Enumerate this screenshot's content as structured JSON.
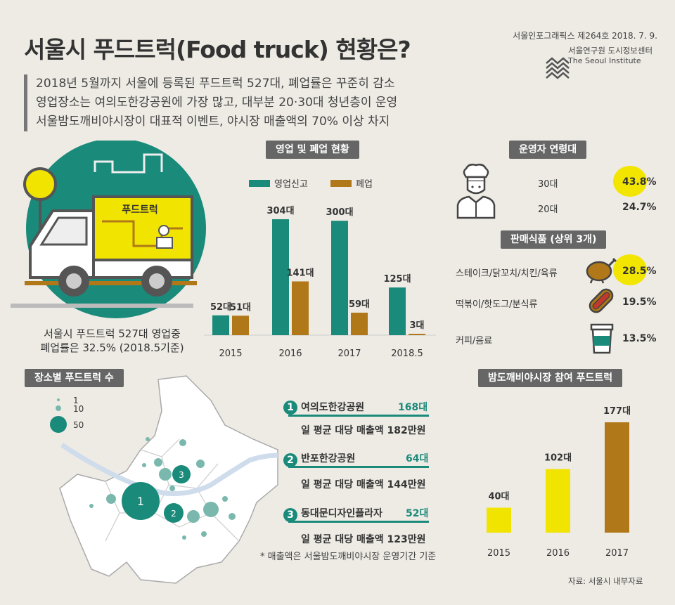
{
  "header": {
    "title": "서울시 푸드트럭(Food truck) 현황은?",
    "publication": "서울인포그래픽스 제264호 2018. 7. 9.",
    "org_korean": "서울연구원 도시정보센터",
    "org_english": "The Seoul Institute"
  },
  "summary": [
    "2018년 5월까지 서울에 등록된 푸드트럭 527대, 폐업률은 꾸준히 감소",
    "영업장소는 여의도한강공원에 가장 많고, 대부분 20·30대 청년층이 운영",
    "서울밤도깨비야시장이 대표적 이벤트, 야시장 매출액의 70% 이상 차지"
  ],
  "truck": {
    "sign": "푸드트럭",
    "caption_line1": "서울시 푸드트럭 527대 영업중",
    "caption_line2": "폐업률은 32.5% (2018.5기준)"
  },
  "colors": {
    "teal": "#1a8a7a",
    "brown": "#b07818",
    "yellow": "#f0e400",
    "section_bg": "#666666"
  },
  "sections": {
    "business": "영업 및 폐업 현황",
    "age": "운영자 연령대",
    "food": "판매식품 (상위 3개)",
    "places": "장소별 푸드트럭 수",
    "night_market": "밤도깨비야시장 참여 푸드트럭"
  },
  "chart_data": [
    {
      "type": "bar",
      "categories": [
        "2015",
        "2016",
        "2017",
        "2018.5"
      ],
      "series": [
        {
          "name": "영업신고",
          "values": [
            52,
            304,
            300,
            125
          ],
          "labels": [
            "52대",
            "304대",
            "300대",
            "125대"
          ],
          "color": "#1a8a7a"
        },
        {
          "name": "폐업",
          "values": [
            51,
            141,
            59,
            3
          ],
          "labels": [
            "51대",
            "141대",
            "59대",
            "3대"
          ],
          "color": "#b07818"
        }
      ],
      "title": "영업 및 폐업 현황",
      "legend": "top"
    },
    {
      "type": "table",
      "title": "운영자 연령대",
      "rows": [
        {
          "label": "30대",
          "value": "43.8%",
          "highlight": true
        },
        {
          "label": "20대",
          "value": "24.7%",
          "highlight": false
        }
      ]
    },
    {
      "type": "table",
      "title": "판매식품 (상위 3개)",
      "rows": [
        {
          "label": "스테이크/닭꼬치/치킨/육류",
          "value": "28.5%",
          "icon": "chicken-icon",
          "highlight": true
        },
        {
          "label": "떡볶이/핫도그/분식류",
          "value": "19.5%",
          "icon": "hotdog-icon",
          "highlight": false
        },
        {
          "label": "커피/음료",
          "value": "13.5%",
          "icon": "coffee-cup-icon",
          "highlight": false
        }
      ]
    },
    {
      "type": "bar",
      "title": "밤도깨비야시장 참여 푸드트럭",
      "categories": [
        "2015",
        "2016",
        "2017"
      ],
      "values": [
        40,
        102,
        177
      ],
      "labels": [
        "40대",
        "102대",
        "177대"
      ],
      "colors": [
        "#f0e400",
        "#f0e400",
        "#b07818"
      ]
    }
  ],
  "map": {
    "legend": [
      "1",
      "10",
      "50"
    ],
    "markers": [
      "1",
      "2",
      "3"
    ]
  },
  "places": [
    {
      "rank": "1",
      "name": "여의도한강공원",
      "count": "168대",
      "sales": "일 평균 대당 매출액 182만원"
    },
    {
      "rank": "2",
      "name": "반포한강공원",
      "count": "64대",
      "sales": "일 평균 대당 매출액 144만원"
    },
    {
      "rank": "3",
      "name": "동대문디자인플라자",
      "count": "52대",
      "sales": "일 평균 대당 매출액 123만원"
    }
  ],
  "places_note": "* 매출액은 서울밤도깨비야시장 운영기간 기준",
  "source": "자료: 서울시 내부자료"
}
